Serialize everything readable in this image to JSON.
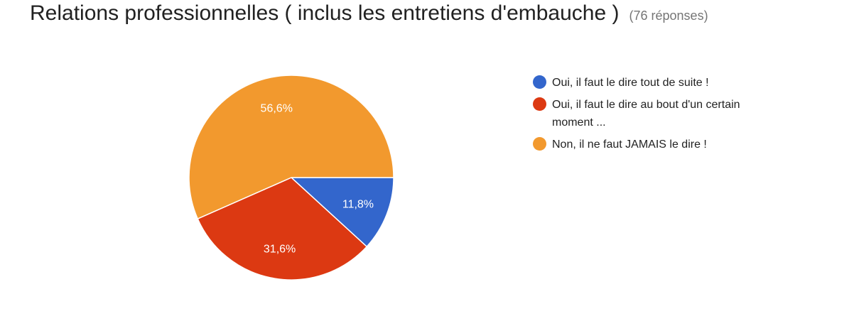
{
  "header": {
    "title": "Relations professionnelles ( inclus les entretiens d'embauche )",
    "response_count": "(76 réponses)"
  },
  "chart_data": {
    "type": "pie",
    "title": "Relations professionnelles ( inclus les entretiens d'embauche )",
    "legend_position": "right",
    "slices": [
      {
        "label": "Oui, il faut le dire tout de suite !",
        "value": 11.8,
        "value_label": "11,8%",
        "color": "#3366cc"
      },
      {
        "label": "Oui, il faut le dire au bout d'un certain moment ...",
        "value": 31.6,
        "value_label": "31,6%",
        "color": "#dc3912"
      },
      {
        "label": "Non, il ne faut JAMAIS le dire !",
        "value": 56.6,
        "value_label": "56,6%",
        "color": "#f2992e"
      }
    ]
  }
}
